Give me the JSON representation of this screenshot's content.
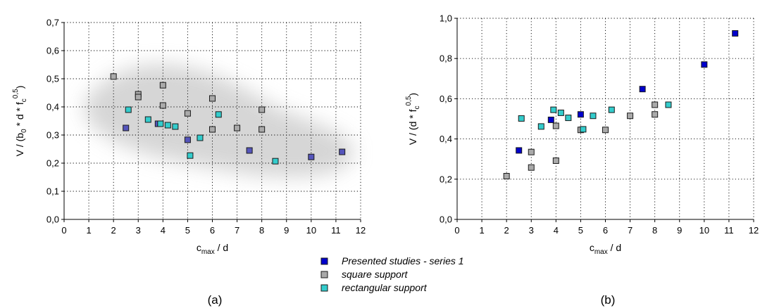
{
  "chart_data": [
    {
      "type": "scatter",
      "panel_label": "(a)",
      "xlabel": {
        "base": "c",
        "sub": "max",
        "rest": " / d"
      },
      "ylabel": {
        "p1": "V / (b",
        "sub0": "0",
        "p2": " * d * f",
        "subc": "c",
        "sup": "0,5",
        "p3": ")"
      },
      "xlim": [
        0,
        12
      ],
      "ylim": [
        0,
        0.7
      ],
      "xticks": [
        "0",
        "1",
        "2",
        "3",
        "4",
        "5",
        "6",
        "7",
        "8",
        "9",
        "10",
        "11",
        "12"
      ],
      "yticks": [
        "0,0",
        "0,1",
        "0,2",
        "0,3",
        "0,4",
        "0,5",
        "0,6",
        "0,7"
      ],
      "grid": true,
      "shaded_band": true,
      "series": [
        {
          "name": "Presented studies - series 1",
          "color": "#5555bb",
          "x": [
            2.5,
            3.8,
            5.0,
            7.5,
            10.0,
            11.25
          ],
          "y": [
            0.325,
            0.34,
            0.283,
            0.245,
            0.222,
            0.24
          ]
        },
        {
          "name": "square support",
          "color": "#aaaaaa",
          "x": [
            2.0,
            3.0,
            3.0,
            4.0,
            4.0,
            5.0,
            6.0,
            6.0,
            7.0,
            8.0,
            8.0
          ],
          "y": [
            0.508,
            0.445,
            0.435,
            0.477,
            0.405,
            0.377,
            0.43,
            0.32,
            0.325,
            0.39,
            0.32
          ]
        },
        {
          "name": "rectangular support",
          "color": "#33cccc",
          "x": [
            2.6,
            3.4,
            3.9,
            4.2,
            4.5,
            5.1,
            5.5,
            6.25,
            8.55
          ],
          "y": [
            0.39,
            0.355,
            0.34,
            0.335,
            0.33,
            0.227,
            0.29,
            0.373,
            0.207
          ]
        }
      ]
    },
    {
      "type": "scatter",
      "panel_label": "(b)",
      "xlabel": {
        "base": "c",
        "sub": "max",
        "rest": " / d"
      },
      "ylabel": {
        "p1": "V / (d * f",
        "subc": "c",
        "sup": "0,5",
        "p3": ")"
      },
      "xlim": [
        0,
        12
      ],
      "ylim": [
        0,
        1.0
      ],
      "xticks": [
        "0",
        "1",
        "2",
        "3",
        "4",
        "5",
        "6",
        "7",
        "8",
        "9",
        "10",
        "11",
        "12"
      ],
      "yticks": [
        "0,0",
        "0,2",
        "0,4",
        "0,6",
        "0,8",
        "1,0"
      ],
      "grid": true,
      "series": [
        {
          "name": "Presented studies - series 1",
          "color": "#0000cc",
          "x": [
            2.5,
            3.8,
            5.0,
            7.5,
            10.0,
            11.25
          ],
          "y": [
            0.343,
            0.495,
            0.522,
            0.648,
            0.77,
            0.925
          ]
        },
        {
          "name": "square support",
          "color": "#aaaaaa",
          "x": [
            2.0,
            3.0,
            3.0,
            4.0,
            4.0,
            5.0,
            6.0,
            7.0,
            8.0,
            8.0
          ],
          "y": [
            0.215,
            0.335,
            0.258,
            0.292,
            0.465,
            0.445,
            0.445,
            0.515,
            0.57,
            0.522
          ]
        },
        {
          "name": "rectangular support",
          "color": "#33cccc",
          "x": [
            2.6,
            3.4,
            3.9,
            4.2,
            4.5,
            5.1,
            5.5,
            6.25,
            8.55
          ],
          "y": [
            0.502,
            0.462,
            0.545,
            0.53,
            0.505,
            0.448,
            0.515,
            0.545,
            0.57
          ]
        }
      ]
    }
  ],
  "legend": {
    "items": [
      {
        "label": "Presented studies - series 1",
        "color": "#0000cc"
      },
      {
        "label": "square support",
        "color": "#aaaaaa"
      },
      {
        "label": "rectangular support",
        "color": "#33cccc"
      }
    ]
  }
}
